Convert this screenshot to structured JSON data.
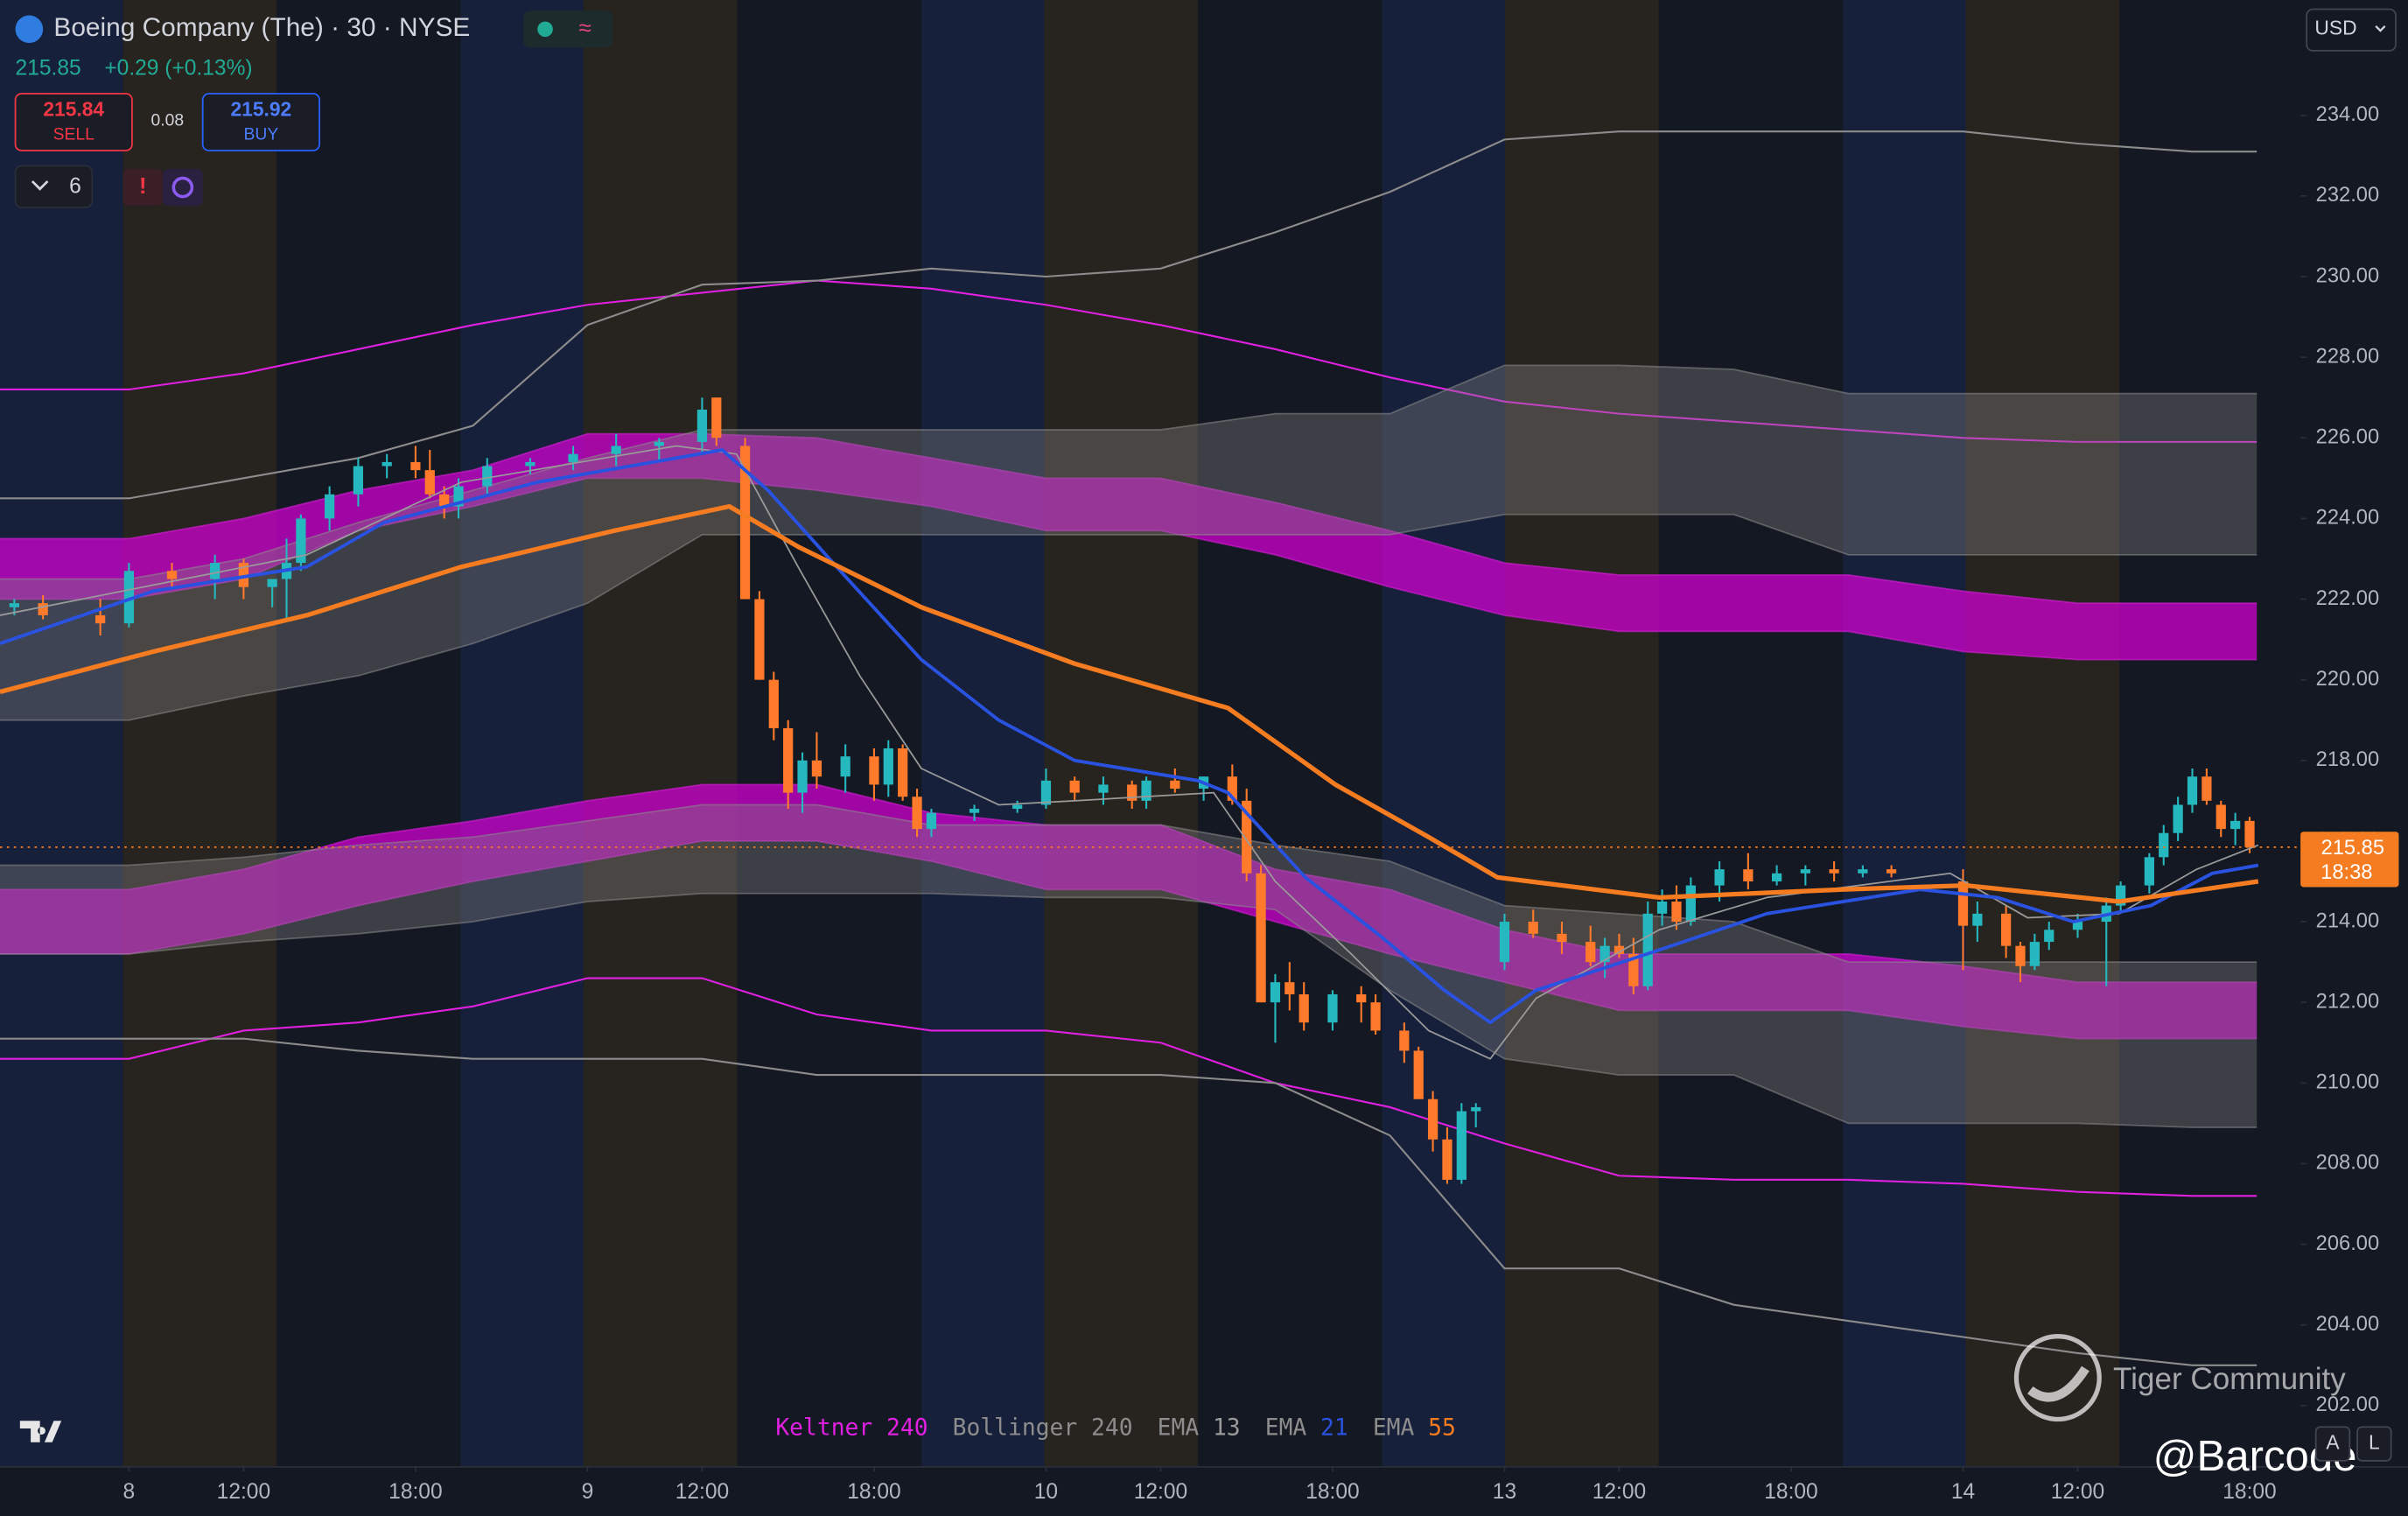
{
  "chart_data": {
    "type": "candlestick",
    "title": "Boeing Company (The) · 30 · NYSE",
    "x": [
      -8,
      -6,
      -2,
      0,
      3,
      6,
      8,
      10,
      11,
      12,
      14,
      16,
      18,
      20,
      21,
      22,
      23,
      25,
      28,
      31,
      34,
      37,
      40,
      41,
      43,
      44,
      45,
      46,
      47,
      48,
      50,
      52,
      53,
      54,
      55,
      56,
      59,
      62,
      64,
      66,
      68,
      70,
      71,
      73,
      75,
      77,
      78,
      79,
      80,
      81,
      82,
      84,
      86,
      87,
      89,
      90,
      91,
      92,
      93,
      94,
      96,
      98,
      100,
      102,
      103,
      104,
      105,
      106,
      107,
      108,
      109,
      111,
      113,
      115,
      117,
      119,
      121,
      123,
      128,
      129,
      131,
      132,
      133,
      134,
      136,
      138,
      139,
      141,
      142,
      143,
      144,
      145,
      146,
      147,
      148
    ],
    "open": [
      221.8,
      221.9,
      221.6,
      221.4,
      222.7,
      222.5,
      222.9,
      222.3,
      222.5,
      222.9,
      224.0,
      224.6,
      225.3,
      225.4,
      225.2,
      224.6,
      224.3,
      224.8,
      225.3,
      225.4,
      225.6,
      225.8,
      225.9,
      227.0,
      225.8,
      222.0,
      220.0,
      218.8,
      217.2,
      218.0,
      217.6,
      218.1,
      217.4,
      218.3,
      217.1,
      216.3,
      216.7,
      216.8,
      216.9,
      217.5,
      217.2,
      217.4,
      217.0,
      217.5,
      217.3,
      217.6,
      217.0,
      215.2,
      212.0,
      212.5,
      212.2,
      211.5,
      212.2,
      212.0,
      211.3,
      210.8,
      209.6,
      208.6,
      207.6,
      209.3,
      213.0,
      214.0,
      213.7,
      213.5,
      213.0,
      213.4,
      213.2,
      212.4,
      214.2,
      214.5,
      214.0,
      214.9,
      215.3,
      215.0,
      215.2,
      215.3,
      215.2,
      215.3,
      215.0,
      213.9,
      214.2,
      213.4,
      212.9,
      213.5,
      213.8,
      214.0,
      214.4,
      214.9,
      215.6,
      216.2,
      216.9,
      217.6,
      216.9,
      216.3,
      216.5
    ],
    "high": [
      222.0,
      222.1,
      222.0,
      222.9,
      222.9,
      223.1,
      223.0,
      222.5,
      223.5,
      224.1,
      224.8,
      225.5,
      225.6,
      225.8,
      225.7,
      224.8,
      225.0,
      225.5,
      225.5,
      225.8,
      226.1,
      226.0,
      227.0,
      227.0,
      226.0,
      222.2,
      220.2,
      219.0,
      218.2,
      218.7,
      218.4,
      218.3,
      218.5,
      218.4,
      217.3,
      216.8,
      216.9,
      217.0,
      217.8,
      217.6,
      217.6,
      217.5,
      217.6,
      217.8,
      217.6,
      217.9,
      217.3,
      215.4,
      212.7,
      213.0,
      212.5,
      212.3,
      212.4,
      212.2,
      211.5,
      210.9,
      209.8,
      208.9,
      209.5,
      209.5,
      214.2,
      214.3,
      214.0,
      213.9,
      213.6,
      213.7,
      213.6,
      214.5,
      214.8,
      214.9,
      215.1,
      215.5,
      215.7,
      215.4,
      215.4,
      215.5,
      215.4,
      215.4,
      215.3,
      214.5,
      214.4,
      213.5,
      213.7,
      214.0,
      214.2,
      214.6,
      215.0,
      215.7,
      216.4,
      217.1,
      217.8,
      217.8,
      217.0,
      216.7,
      216.6
    ],
    "low": [
      221.6,
      221.5,
      221.1,
      221.3,
      222.3,
      222.0,
      222.0,
      221.8,
      221.5,
      222.7,
      223.7,
      224.3,
      225.0,
      225.0,
      224.5,
      224.0,
      224.0,
      224.6,
      225.1,
      225.2,
      225.3,
      225.4,
      225.6,
      225.8,
      222.0,
      220.0,
      218.5,
      216.8,
      216.7,
      217.3,
      217.2,
      217.0,
      217.1,
      217.0,
      216.1,
      216.1,
      216.5,
      216.7,
      216.8,
      217.0,
      216.9,
      216.8,
      216.8,
      217.2,
      217.0,
      216.9,
      215.0,
      212.0,
      211.0,
      211.8,
      211.3,
      211.3,
      211.5,
      211.2,
      210.5,
      209.6,
      208.3,
      207.5,
      207.5,
      208.9,
      212.8,
      213.6,
      213.2,
      212.9,
      212.6,
      213.1,
      212.2,
      212.3,
      213.9,
      213.8,
      213.9,
      214.5,
      214.8,
      214.9,
      214.9,
      215.0,
      215.1,
      215.1,
      212.8,
      213.5,
      213.1,
      212.5,
      212.8,
      213.3,
      213.6,
      212.4,
      214.2,
      214.7,
      215.4,
      216.0,
      216.7,
      216.9,
      216.1,
      215.9,
      215.7
    ],
    "close": [
      221.9,
      221.6,
      221.4,
      222.7,
      222.5,
      222.9,
      222.3,
      222.5,
      222.9,
      224.0,
      224.6,
      225.3,
      225.4,
      225.2,
      224.6,
      224.3,
      224.8,
      225.3,
      225.4,
      225.6,
      225.8,
      225.9,
      226.7,
      226.0,
      222.0,
      220.0,
      218.8,
      217.2,
      218.0,
      217.6,
      218.1,
      217.4,
      218.3,
      217.1,
      216.3,
      216.7,
      216.8,
      216.9,
      217.5,
      217.2,
      217.4,
      217.0,
      217.5,
      217.3,
      217.6,
      217.0,
      215.2,
      212.0,
      212.5,
      212.2,
      211.5,
      212.2,
      212.0,
      211.3,
      210.8,
      209.6,
      208.6,
      207.6,
      209.3,
      209.4,
      214.0,
      213.7,
      213.5,
      213.0,
      213.4,
      213.2,
      212.4,
      214.2,
      214.5,
      214.0,
      214.9,
      215.3,
      215.0,
      215.2,
      215.3,
      215.2,
      215.3,
      215.2,
      213.9,
      214.2,
      213.4,
      212.9,
      213.5,
      213.8,
      214.0,
      214.4,
      214.9,
      215.6,
      216.2,
      216.9,
      217.6,
      217.0,
      216.3,
      216.5,
      215.85
    ],
    "up_color": "#26b8bf",
    "down_color": "#ff7a2a",
    "xlim": [
      -9,
      151.55
    ],
    "ylim": [
      200.48,
      236.86
    ],
    "grid": false,
    "xticks": [
      {
        "value": 0,
        "label": "8"
      },
      {
        "value": 8,
        "label": "12:00"
      },
      {
        "value": 20,
        "label": "18:00"
      },
      {
        "value": 32,
        "label": "9"
      },
      {
        "value": 40,
        "label": "12:00"
      },
      {
        "value": 52,
        "label": "18:00"
      },
      {
        "value": 64,
        "label": "10"
      },
      {
        "value": 72,
        "label": "12:00"
      },
      {
        "value": 84,
        "label": "18:00"
      },
      {
        "value": 96,
        "label": "13"
      },
      {
        "value": 104,
        "label": "12:00"
      },
      {
        "value": 116,
        "label": "18:00"
      },
      {
        "value": 128,
        "label": "14"
      },
      {
        "value": 136,
        "label": "12:00"
      },
      {
        "value": 148,
        "label": "18:00"
      }
    ],
    "yticks": [
      {
        "value": 202,
        "label": "202.00"
      },
      {
        "value": 204,
        "label": "204.00"
      },
      {
        "value": 206,
        "label": "206.00"
      },
      {
        "value": 208,
        "label": "208.00"
      },
      {
        "value": 210,
        "label": "210.00"
      },
      {
        "value": 212,
        "label": "212.00"
      },
      {
        "value": 214,
        "label": "214.00"
      },
      {
        "value": 216,
        "label": "216.00"
      },
      {
        "value": 218,
        "label": "218.00"
      },
      {
        "value": 220,
        "label": "220.00"
      },
      {
        "value": 222,
        "label": "222.00"
      },
      {
        "value": 224,
        "label": "224.00"
      },
      {
        "value": 226,
        "label": "226.00"
      },
      {
        "value": 228,
        "label": "228.00"
      },
      {
        "value": 230,
        "label": "230.00"
      },
      {
        "value": 232,
        "label": "232.00"
      },
      {
        "value": 234,
        "label": "234.00"
      }
    ],
    "currency": "USD",
    "last_price": 215.85,
    "countdown": "18:38",
    "last_color": "#f57c20",
    "band_x": [
      -9,
      0,
      8,
      16,
      24,
      32,
      40,
      48,
      56,
      64,
      72,
      80,
      88,
      96,
      104,
      112,
      120,
      128,
      136,
      144,
      148.5
    ],
    "indicators": [
      {
        "name": "Keltner",
        "period": 240,
        "color": "#e020e0",
        "fill": "rgba(215,0,215,0.72)",
        "bands": [
          [
            [
              223.5,
              223.5,
              224.0,
              224.7,
              225.2,
              226.1,
              226.1,
              226.0,
              225.5,
              225.0,
              225.0,
              224.4,
              223.7,
              222.9,
              222.6,
              222.6,
              222.6,
              222.2,
              221.9,
              221.9,
              221.9
            ],
            [
              222.0,
              222.0,
              222.5,
              223.7,
              224.3,
              225.0,
              225.0,
              224.7,
              224.3,
              223.7,
              223.7,
              223.1,
              222.3,
              221.6,
              221.2,
              221.2,
              221.2,
              220.7,
              220.5,
              220.5,
              220.5
            ]
          ],
          [
            [
              214.8,
              214.8,
              215.3,
              216.1,
              216.5,
              217.0,
              217.4,
              217.4,
              216.7,
              216.4,
              216.4,
              215.3,
              214.8,
              213.8,
              213.2,
              213.2,
              213.2,
              212.9,
              212.5,
              212.5,
              212.5
            ],
            [
              213.2,
              213.2,
              213.7,
              214.4,
              215.0,
              215.5,
              216.0,
              216.0,
              215.5,
              214.8,
              214.8,
              214.0,
              213.2,
              212.5,
              211.8,
              211.8,
              211.8,
              211.4,
              211.1,
              211.1,
              211.1
            ]
          ]
        ],
        "lines": [
          [
            227.2,
            227.2,
            227.6,
            228.2,
            228.8,
            229.3,
            229.6,
            229.9,
            229.7,
            229.3,
            228.8,
            228.2,
            227.5,
            226.9,
            226.6,
            226.4,
            226.2,
            226.0,
            225.9,
            225.9,
            225.9
          ],
          [
            210.6,
            210.6,
            211.3,
            211.5,
            211.9,
            212.6,
            212.6,
            211.7,
            211.3,
            211.3,
            211.0,
            210.0,
            209.4,
            208.5,
            207.7,
            207.6,
            207.6,
            207.5,
            207.3,
            207.2,
            207.2
          ]
        ]
      },
      {
        "name": "Bollinger",
        "period": 240,
        "color": "#8c8c8c",
        "fill": "rgba(130,130,130,0.38)",
        "bands": [
          [
            [
              222.5,
              222.5,
              223.0,
              223.9,
              224.7,
              225.5,
              226.2,
              226.2,
              226.2,
              226.2,
              226.2,
              226.6,
              226.6,
              227.8,
              227.8,
              227.7,
              227.1,
              227.1,
              227.1,
              227.1,
              227.1
            ],
            [
              219.0,
              219.0,
              219.6,
              220.1,
              220.9,
              221.9,
              223.6,
              223.6,
              223.6,
              223.6,
              223.6,
              223.6,
              223.6,
              224.1,
              224.1,
              224.1,
              223.1,
              223.1,
              223.1,
              223.1,
              223.1
            ]
          ],
          [
            [
              215.4,
              215.4,
              215.6,
              215.9,
              216.1,
              216.5,
              216.9,
              216.9,
              216.4,
              216.4,
              216.4,
              215.9,
              215.5,
              214.4,
              214.2,
              214.0,
              213.0,
              213.0,
              213.0,
              213.0,
              213.0
            ],
            [
              213.2,
              213.2,
              213.5,
              213.7,
              214.0,
              214.5,
              214.7,
              214.7,
              214.7,
              214.6,
              214.6,
              214.3,
              212.3,
              210.6,
              210.2,
              210.2,
              209.0,
              209.0,
              209.0,
              208.9,
              208.9
            ]
          ]
        ],
        "lines": [
          [
            224.5,
            224.5,
            225.0,
            225.5,
            226.3,
            228.8,
            229.8,
            229.9,
            230.2,
            230.0,
            230.2,
            231.1,
            232.1,
            233.4,
            233.6,
            233.6,
            233.6,
            233.6,
            233.3,
            233.1,
            233.1
          ],
          [
            211.1,
            211.1,
            211.1,
            210.8,
            210.6,
            210.6,
            210.6,
            210.2,
            210.2,
            210.2,
            210.2,
            210.0,
            208.7,
            205.4,
            205.4,
            204.5,
            204.1,
            203.7,
            203.3,
            203.0,
            203.0
          ]
        ]
      },
      {
        "name": "EMA",
        "period": 13,
        "color": "#9a9a9a",
        "width": 1,
        "x": [
          -9,
          12.4,
          23.2,
          38.2,
          42.4,
          46.7,
          51.0,
          55.3,
          60.7,
          66.0,
          75.7,
          80.0,
          85.3,
          90.7,
          95.0,
          98.2,
          106.8,
          114.3,
          127.1,
          132.5,
          138.9,
          144.3,
          148.6
        ],
        "values": [
          221.6,
          223.1,
          224.9,
          225.8,
          225.6,
          222.8,
          220.1,
          217.8,
          216.9,
          217.0,
          217.2,
          215.0,
          213.2,
          211.3,
          210.6,
          212.1,
          213.8,
          214.6,
          215.2,
          214.1,
          214.2,
          215.3,
          215.9
        ]
      },
      {
        "name": "EMA",
        "period": 21,
        "color": "#2a52e0",
        "width": 2.2,
        "x": [
          -9,
          1.7,
          12.4,
          17.8,
          28.5,
          38.2,
          41.4,
          44.6,
          49.9,
          55.3,
          60.7,
          66.0,
          74.6,
          76.7,
          82.1,
          87.5,
          91.8,
          95.0,
          98.2,
          106.8,
          114.3,
          125.0,
          130.4,
          135.7,
          141.1,
          145.4,
          148.6
        ],
        "values": [
          220.9,
          222.2,
          222.8,
          223.9,
          224.9,
          225.5,
          225.7,
          224.7,
          222.6,
          220.5,
          219.0,
          218.0,
          217.5,
          217.2,
          215.1,
          213.6,
          212.3,
          211.5,
          212.3,
          213.3,
          214.2,
          214.8,
          214.6,
          214.0,
          214.4,
          215.2,
          215.4
        ]
      },
      {
        "name": "EMA",
        "period": 55,
        "color": "#f57c20",
        "width": 3,
        "x": [
          -9,
          1.7,
          12.4,
          23.2,
          33.9,
          41.9,
          46.7,
          55.3,
          66.0,
          76.7,
          84.2,
          90.7,
          95.5,
          106.8,
          119.6,
          128.2,
          138.9,
          148.6
        ],
        "values": [
          219.7,
          220.7,
          221.6,
          222.8,
          223.7,
          224.3,
          223.3,
          221.8,
          220.4,
          219.3,
          217.4,
          216.1,
          215.1,
          214.6,
          214.8,
          214.9,
          214.5,
          215.0
        ]
      }
    ]
  },
  "quote": {
    "price": "215.85",
    "change": "+0.29 (+0.13%)"
  },
  "trade": {
    "sell_price": "215.84",
    "sell_label": "SELL",
    "spread": "0.08",
    "buy_price": "215.92",
    "buy_label": "BUY"
  },
  "indicator_count": "6",
  "watermark": {
    "brand": "Tiger Community",
    "handle": "@Barcode"
  },
  "scale_buttons": {
    "auto": "A",
    "log": "L"
  }
}
